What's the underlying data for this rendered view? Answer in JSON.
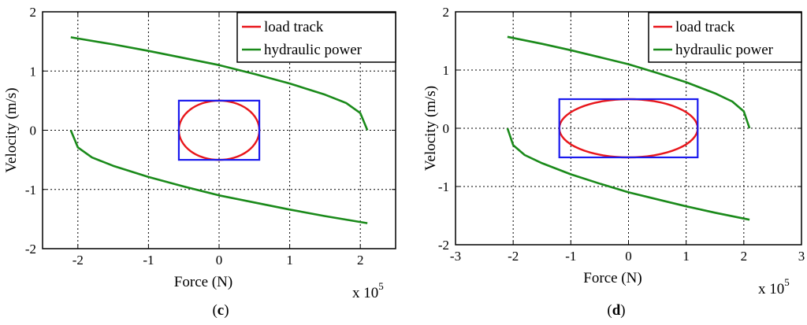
{
  "chart_data": [
    {
      "type": "line",
      "panel": "c",
      "xlabel": "Force (N)",
      "ylabel": "Velocity (m/s)",
      "x_multiplier": "x 10",
      "x_multiplier_exp": "5",
      "xlim": [
        -2.5,
        2.5
      ],
      "ylim": [
        -2,
        2
      ],
      "x_ticks": [
        -2,
        -1,
        0,
        1,
        2
      ],
      "y_ticks": [
        -2,
        -1,
        0,
        1,
        2
      ],
      "grid": true,
      "legend_placement": "top-right",
      "legend": [
        "load track",
        "hydraulic power"
      ],
      "series": [
        {
          "name": "load track",
          "color": "#e8161b",
          "shape": "ellipse",
          "center": [
            0,
            0
          ],
          "x_radius": 0.57,
          "y_radius": 0.5
        },
        {
          "name": "hydraulic power",
          "color": "#1a8a1a",
          "shape": "curve",
          "upper": {
            "x": [
              -2.1,
              -1.5,
              -1.0,
              -0.5,
              0,
              0.5,
              1.0,
              1.5,
              1.8,
              2.0,
              2.1
            ],
            "y": [
              1.57,
              1.45,
              1.34,
              1.22,
              1.1,
              0.95,
              0.79,
              0.6,
              0.46,
              0.29,
              0.0
            ]
          },
          "lower": {
            "x": [
              -2.1,
              -2.0,
              -1.8,
              -1.5,
              -1.0,
              -0.5,
              0,
              0.5,
              1.0,
              1.5,
              2.1
            ],
            "y": [
              0.0,
              -0.29,
              -0.46,
              -0.6,
              -0.79,
              -0.95,
              -1.1,
              -1.22,
              -1.34,
              -1.45,
              -1.57
            ]
          }
        },
        {
          "name": "bounding box",
          "color": "#1a1aee",
          "shape": "rect",
          "x": [
            -0.57,
            0.57
          ],
          "y": [
            -0.5,
            0.5
          ]
        }
      ]
    },
    {
      "type": "line",
      "panel": "d",
      "xlabel": "Force (N)",
      "ylabel": "Velocity (m/s)",
      "x_multiplier": "x 10",
      "x_multiplier_exp": "5",
      "xlim": [
        -3,
        3
      ],
      "ylim": [
        -2,
        2
      ],
      "x_ticks": [
        -3,
        -2,
        -1,
        0,
        1,
        2,
        3
      ],
      "y_ticks": [
        -2,
        -1,
        0,
        1,
        2
      ],
      "grid": true,
      "legend_placement": "top-right",
      "legend": [
        "load track",
        "hydraulic power"
      ],
      "series": [
        {
          "name": "load track",
          "color": "#e8161b",
          "shape": "ellipse",
          "center": [
            0,
            0
          ],
          "x_radius": 1.2,
          "y_radius": 0.5
        },
        {
          "name": "hydraulic power",
          "color": "#1a8a1a",
          "shape": "curve",
          "upper": {
            "x": [
              -2.1,
              -1.5,
              -1.0,
              -0.5,
              0,
              0.5,
              1.0,
              1.5,
              1.8,
              2.0,
              2.1
            ],
            "y": [
              1.57,
              1.45,
              1.34,
              1.22,
              1.1,
              0.95,
              0.79,
              0.6,
              0.46,
              0.29,
              0.0
            ]
          },
          "lower": {
            "x": [
              -2.1,
              -2.0,
              -1.8,
              -1.5,
              -1.0,
              -0.5,
              0,
              0.5,
              1.0,
              1.5,
              2.1
            ],
            "y": [
              0.0,
              -0.29,
              -0.46,
              -0.6,
              -0.79,
              -0.95,
              -1.1,
              -1.22,
              -1.34,
              -1.45,
              -1.57
            ]
          }
        },
        {
          "name": "bounding box",
          "color": "#1a1aee",
          "shape": "rect",
          "x": [
            -1.2,
            1.2
          ],
          "y": [
            -0.5,
            0.5
          ]
        }
      ]
    }
  ],
  "captions": {
    "c": "c",
    "d": "d"
  }
}
